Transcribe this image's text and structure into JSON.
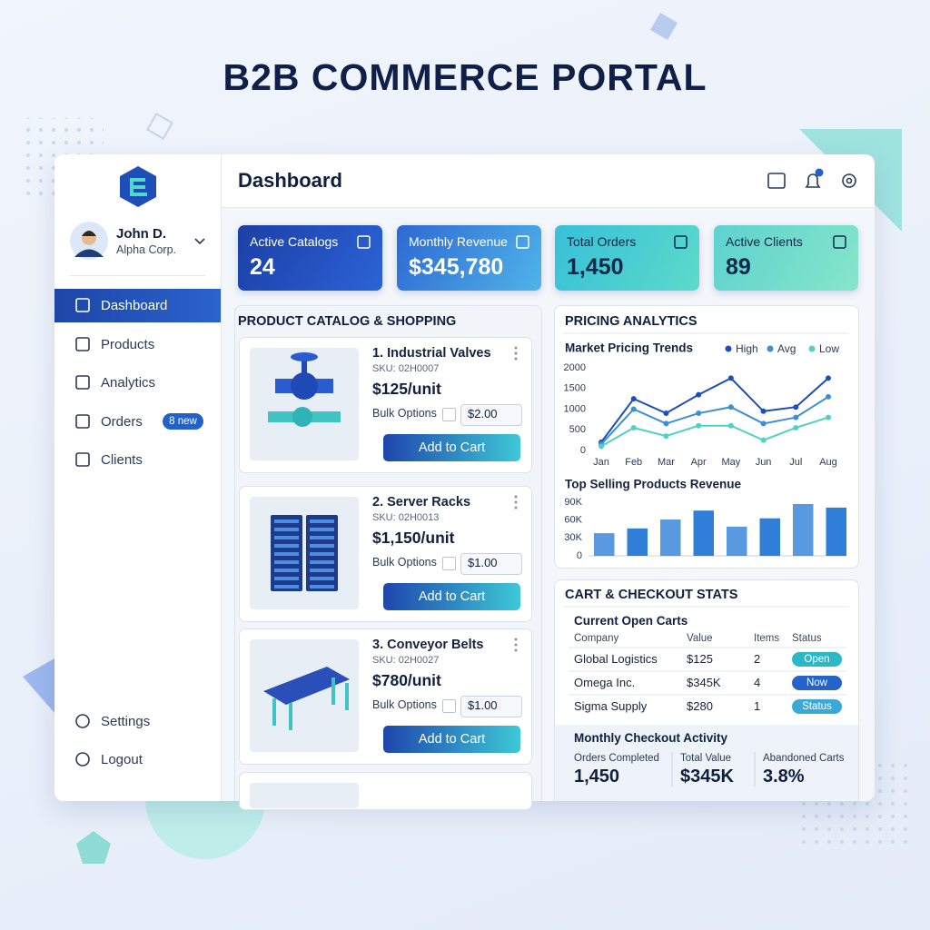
{
  "header": {
    "title": "B2B COMMERCE PORTAL"
  },
  "sidebar": {
    "user": {
      "name": "John D.",
      "company": "Alpha Corp."
    },
    "nav": [
      {
        "label": "Dashboard"
      },
      {
        "label": "Products"
      },
      {
        "label": "Analytics"
      },
      {
        "label": "Orders",
        "badge": "8 new"
      },
      {
        "label": "Clients"
      }
    ],
    "footer_nav": [
      {
        "label": "Settings"
      },
      {
        "label": "Logout"
      }
    ]
  },
  "main": {
    "title": "Dashboard",
    "kpis": [
      {
        "label": "Active Catalogs",
        "value": "24"
      },
      {
        "label": "Monthly Revenue",
        "value": "$345,780"
      },
      {
        "label": "Total Orders",
        "value": "1,450"
      },
      {
        "label": "Active Clients",
        "value": "89"
      }
    ]
  },
  "catalog": {
    "title": "PRODUCT CATALOG & SHOPPING",
    "bulk_label": "Bulk Options",
    "cta": "Add to Cart",
    "products": [
      {
        "name": "1. Industrial Valves",
        "sku": "SKU: 02H0007",
        "price": "$125/unit",
        "bulk": "$2.00"
      },
      {
        "name": "2. Server Racks",
        "sku": "SKU: 02H0013",
        "price": "$1,150/unit",
        "bulk": "$1.00"
      },
      {
        "name": "3. Conveyor Belts",
        "sku": "SKU: 02H0027",
        "price": "$780/unit",
        "bulk": "$1.00"
      }
    ]
  },
  "pricing": {
    "title": "PRICING ANALYTICS",
    "trend_chart": {
      "type": "line",
      "title": "Market Pricing Trends",
      "categories": [
        "Jan",
        "Feb",
        "Mar",
        "Apr",
        "May",
        "Jun",
        "Jul",
        "Aug"
      ],
      "series": [
        {
          "name": "High",
          "color": "#1f4fb5",
          "values": [
            200,
            1250,
            900,
            1350,
            1750,
            950,
            1050,
            1750
          ]
        },
        {
          "name": "Avg",
          "color": "#3b8fd9",
          "values": [
            150,
            1000,
            650,
            900,
            1050,
            650,
            800,
            1300
          ]
        },
        {
          "name": "Low",
          "color": "#4fd1c5",
          "values": [
            100,
            550,
            350,
            600,
            600,
            250,
            550,
            800
          ]
        }
      ],
      "ylim": [
        0,
        2000
      ],
      "yticks": [
        0,
        500,
        1000,
        1500,
        2000
      ],
      "grid": false
    },
    "revenue_chart": {
      "type": "bar",
      "title": "Top Selling Products Revenue",
      "values": [
        38000,
        46000,
        61000,
        76000,
        49000,
        63000,
        87000,
        81000
      ],
      "color": "#2f7fd8",
      "ylim": [
        0,
        90000
      ],
      "yticks": [
        0,
        {
          "value": 30000,
          "label": "30K"
        },
        {
          "value": 60000,
          "label": "60K"
        },
        {
          "value": 90000,
          "label": "90K"
        }
      ],
      "grid": false
    }
  },
  "cart": {
    "title": "CART & CHECKOUT STATS",
    "subtitle": "Current Open Carts",
    "columns": [
      "Company",
      "Value",
      "Items",
      "Status"
    ],
    "rows": [
      [
        "Global Logistics",
        "$125",
        "2",
        "Open"
      ],
      [
        "Omega Inc.",
        "$345K",
        "4",
        "Now"
      ],
      [
        "Sigma Supply",
        "$280",
        "1",
        "Status"
      ]
    ],
    "activity_title": "Monthly Checkout Activity",
    "activity": [
      {
        "label": "Orders Completed",
        "value": "1,450"
      },
      {
        "label": "Total Value",
        "value": "$345K"
      },
      {
        "label": "Abandoned Carts",
        "value": "3.8%"
      }
    ]
  }
}
